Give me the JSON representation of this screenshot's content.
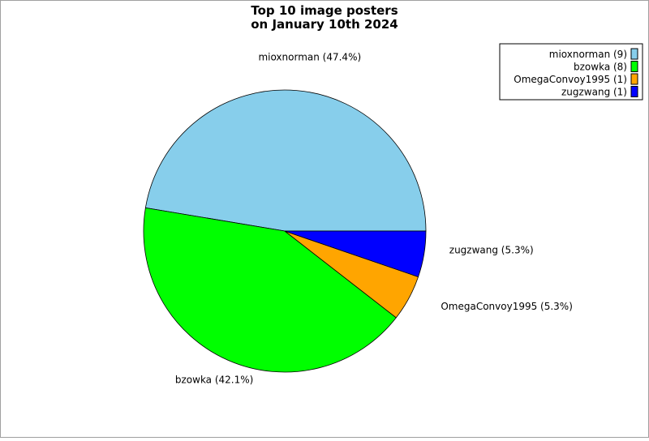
{
  "chart_data": {
    "type": "pie",
    "title": [
      "Top 10 image posters",
      "on January 10th 2024"
    ],
    "slices": [
      {
        "name": "mioxnorman",
        "value": 9,
        "percent": 47.4,
        "color": "#87ceeb",
        "label": "mioxnorman (47.4%)",
        "legend": "mioxnorman (9)"
      },
      {
        "name": "bzowka",
        "value": 8,
        "percent": 42.1,
        "color": "#00ff00",
        "label": "bzowka (42.1%)",
        "legend": "bzowka (8)"
      },
      {
        "name": "OmegaConvoy1995",
        "value": 1,
        "percent": 5.3,
        "color": "#ffa500",
        "label": "OmegaConvoy1995 (5.3%)",
        "legend": "OmegaConvoy1995 (1)"
      },
      {
        "name": "zugzwang",
        "value": 1,
        "percent": 5.3,
        "color": "#0000ff",
        "label": "zugzwang (5.3%)",
        "legend": "zugzwang (1)"
      }
    ],
    "legend_position": "top-right",
    "grid": false
  }
}
